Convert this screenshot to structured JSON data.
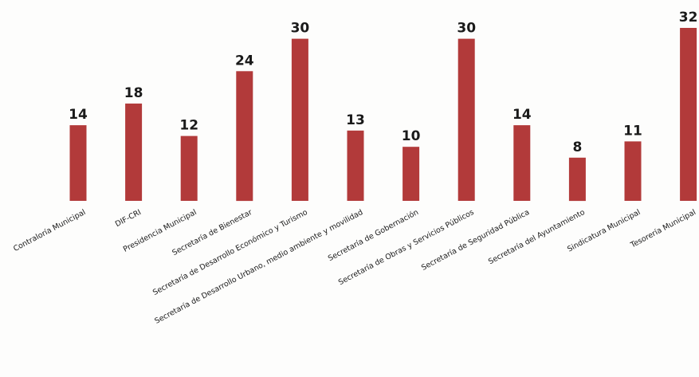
{
  "chart_data": {
    "type": "bar",
    "categories": [
      "Contraloría Municipal",
      "DIF-CRI",
      "Presidencia Municipal",
      "Secretaría de Bienestar",
      "Secretaría de Desarrollo Económico y Turismo",
      "Secretaría de Desarrollo Urbano, medio ambiente  y movilidad",
      "Secretaría de Gobernación",
      "Secretaría de Obras y Servicios Públicos",
      "Secretaría de Seguridad Pública",
      "Secretaría del Ayuntamiento",
      "Sindicatura Municipal",
      "Tesorería Municipal"
    ],
    "values": [
      14,
      18,
      12,
      24,
      30,
      13,
      10,
      30,
      14,
      8,
      11,
      32
    ],
    "title": "",
    "xlabel": "",
    "ylabel": "",
    "ylim": [
      0,
      32
    ],
    "grid": false,
    "colors": {
      "bar": "#b23a3a",
      "text": "#1a1a1a",
      "background": "#fdfdfc"
    }
  }
}
